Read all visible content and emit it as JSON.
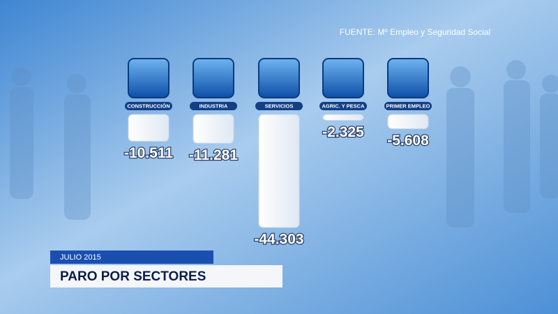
{
  "chart_data": {
    "type": "bar",
    "title": "PARO POR SECTORES",
    "subtitle": "JULIO 2015",
    "source": "FUENTE: Mº Empleo y Seguridad Social",
    "categories": [
      "CONSTRUCCIÓN",
      "INDUSTRIA",
      "SERVICIOS",
      "AGRIC. Y PESCA",
      "PRIMER EMPLEO"
    ],
    "values": [
      -10511,
      -11281,
      -44303,
      -2325,
      -5608
    ],
    "value_labels": [
      "-10.511",
      "-11.281",
      "-44.303",
      "-2.325",
      "-5.608"
    ],
    "color": "#f2f6fb"
  }
}
